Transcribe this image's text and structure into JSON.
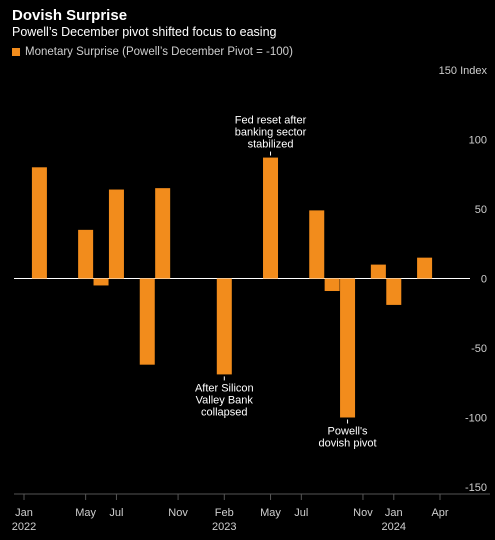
{
  "header": {
    "title": "Dovish Surprise",
    "subtitle": "Powell’s December pivot shifted focus to easing"
  },
  "colors": {
    "bar": "#f28c1c",
    "background": "#000000",
    "zero_line": "#ffffff",
    "axis_line": "#555555"
  },
  "chart_data": {
    "type": "bar",
    "legend": {
      "label": "Monetary Surprise (Powell’s December Pivot = -100)",
      "placement": "top-left"
    },
    "y_axis": {
      "position": "right",
      "ylim": [
        -150,
        150
      ],
      "ticks": [
        150,
        100,
        50,
        0,
        -50,
        -100,
        -150
      ],
      "tick_labels": [
        "150 Index",
        "100",
        "50",
        "0",
        "-50",
        "-100",
        "-150"
      ]
    },
    "x_axis": {
      "start_month": "2022-01",
      "end_month": "2024-05",
      "tick_labels": [
        {
          "month": "2022-01",
          "label": "Jan",
          "year": "2022"
        },
        {
          "month": "2022-05",
          "label": "May",
          "year": ""
        },
        {
          "month": "2022-07",
          "label": "Jul",
          "year": ""
        },
        {
          "month": "2022-11",
          "label": "Nov",
          "year": ""
        },
        {
          "month": "2023-02",
          "label": "Feb",
          "year": "2023"
        },
        {
          "month": "2023-05",
          "label": "May",
          "year": ""
        },
        {
          "month": "2023-07",
          "label": "Jul",
          "year": ""
        },
        {
          "month": "2023-11",
          "label": "Nov",
          "year": ""
        },
        {
          "month": "2024-01",
          "label": "Jan",
          "year": "2024"
        },
        {
          "month": "2024-04",
          "label": "Apr",
          "year": ""
        }
      ]
    },
    "series": [
      {
        "name": "Monetary Surprise (Powell’s December Pivot = -100)",
        "points": [
          {
            "month": "2022-02",
            "value": 80
          },
          {
            "month": "2022-05",
            "value": 35
          },
          {
            "month": "2022-06",
            "value": -5
          },
          {
            "month": "2022-07",
            "value": 64
          },
          {
            "month": "2022-09",
            "value": -62
          },
          {
            "month": "2022-10",
            "value": 65
          },
          {
            "month": "2023-02",
            "value": -69
          },
          {
            "month": "2023-05",
            "value": 87
          },
          {
            "month": "2023-08",
            "value": 49
          },
          {
            "month": "2023-09",
            "value": -9
          },
          {
            "month": "2023-10",
            "value": -100
          },
          {
            "month": "2023-12",
            "value": 10
          },
          {
            "month": "2024-01",
            "value": -19
          },
          {
            "month": "2024-03",
            "value": 15
          }
        ]
      }
    ],
    "annotations": [
      {
        "month": "2023-05",
        "value": 87,
        "lines": [
          "Fed reset after",
          "banking sector",
          "stabilized"
        ],
        "side": "above"
      },
      {
        "month": "2023-02",
        "value": -69,
        "lines": [
          "After Silicon",
          "Valley Bank",
          "collapsed"
        ],
        "side": "below"
      },
      {
        "month": "2023-10",
        "value": -100,
        "lines": [
          "Powell's",
          "dovish pivot"
        ],
        "side": "below"
      }
    ]
  }
}
